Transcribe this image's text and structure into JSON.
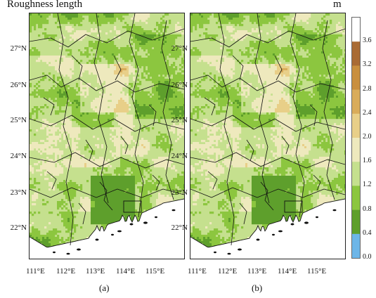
{
  "title": "Roughness length",
  "unit": "m",
  "panels": [
    {
      "label": "(a)"
    },
    {
      "label": "(b)"
    }
  ],
  "axes": {
    "lat_labels": [
      "27°N",
      "26°N",
      "25°N",
      "24°N",
      "23°N",
      "22°N"
    ],
    "lon_labels": [
      "111°E",
      "112°E",
      "113°E",
      "114°E",
      "115°E"
    ],
    "lat_range": [
      21.4,
      27.9
    ],
    "lon_range": [
      110.6,
      116.1
    ]
  },
  "colorbar": {
    "ticks": [
      "3.6",
      "3.2",
      "2.8",
      "2.4",
      "2.0",
      "1.6",
      "1.2",
      "0.8",
      "0.4",
      "0.0"
    ],
    "bins": [
      {
        "range": "<0.0",
        "color": "#6db6e8"
      },
      {
        "range": "0.0-0.4",
        "color": "#5e9f2c"
      },
      {
        "range": "0.4-0.8",
        "color": "#8cc63f"
      },
      {
        "range": "0.8-1.2",
        "color": "#c5e08e"
      },
      {
        "range": "1.2-1.6",
        "color": "#eee9bd"
      },
      {
        "range": "1.6-2.0",
        "color": "#e8cf88"
      },
      {
        "range": "2.0-2.4",
        "color": "#d9ac5a"
      },
      {
        "range": "2.4-2.8",
        "color": "#c98f3e"
      },
      {
        "range": "2.8-3.2",
        "color": "#a96b34"
      },
      {
        "range": ">3.6",
        "color": "#ffffff"
      }
    ]
  }
}
